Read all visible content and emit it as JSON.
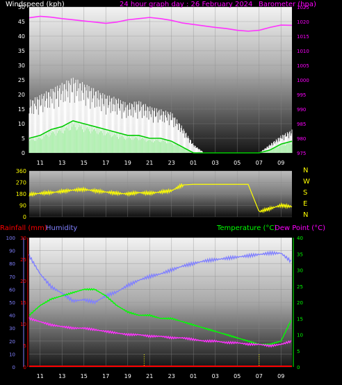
{
  "header": {
    "windspeed_label": "Windspeed (kph)",
    "title": "24 hour graph day : 26 February 2024",
    "barometer_label": "Barometer (hpa)"
  },
  "bottom_header": {
    "rainfall_label": "Rainfall (mm)",
    "humidity_label": "Humidity",
    "temperature_label": "Temperature (°C)",
    "dewpoint_label": "Dew Point (°C)"
  },
  "x_ticks": [
    "11",
    "13",
    "15",
    "17",
    "19",
    "21",
    "23",
    "01",
    "03",
    "05",
    "07",
    "09"
  ],
  "colors": {
    "windspeed_gust": "#ffffff",
    "windspeed_avg": "#b0f0b0",
    "windspeed_avg_line": "#00cc00",
    "barometer": "#ff33ff",
    "direction": "#ffff00",
    "rainfall": "#ff0000",
    "humidity": "#8080ff",
    "temperature": "#00ff00",
    "dewpoint": "#ff33ff",
    "dew_point_label": "#ff00ff"
  },
  "chart_data": [
    {
      "type": "area",
      "title": "24 hour graph day : 26 February 2024",
      "ylabel_left": "Windspeed (kph)",
      "ylabel_right": "Barometer (hpa)",
      "ylim_left": [
        0,
        50
      ],
      "ylim_right": [
        975,
        1025
      ],
      "left_ticks": [
        0,
        5,
        10,
        15,
        20,
        25,
        30,
        35,
        40,
        45,
        50
      ],
      "right_ticks": [
        975,
        980,
        985,
        990,
        995,
        1000,
        1005,
        1010,
        1015,
        1020,
        1025
      ],
      "x_hours": [
        10,
        11,
        12,
        13,
        14,
        15,
        16,
        17,
        18,
        19,
        20,
        21,
        22,
        23,
        24,
        25,
        26,
        27,
        28,
        29,
        30,
        31,
        32,
        33,
        34
      ],
      "series": [
        {
          "name": "Windspeed gust",
          "values": [
            18,
            20,
            22,
            24,
            26,
            24,
            22,
            20,
            19,
            17,
            18,
            16,
            15,
            14,
            9,
            3,
            0,
            0,
            0,
            0,
            0,
            0,
            3,
            6,
            8
          ]
        },
        {
          "name": "Windspeed average",
          "values": [
            5,
            6,
            8,
            9,
            11,
            10,
            9,
            8,
            7,
            6,
            6,
            5,
            5,
            4,
            2,
            0,
            0,
            0,
            0,
            0,
            0,
            0,
            1,
            3,
            4
          ]
        },
        {
          "name": "Barometer",
          "values": [
            1021.3,
            1021.8,
            1021.5,
            1021,
            1020.6,
            1020.2,
            1019.8,
            1019.4,
            1019.8,
            1020.6,
            1021,
            1021.4,
            1021,
            1020.4,
            1019.5,
            1019,
            1018.5,
            1018,
            1017.6,
            1017,
            1016.7,
            1017,
            1018,
            1018.8,
            1018.7
          ]
        }
      ]
    },
    {
      "type": "line",
      "ylabel_right": "N W S E N",
      "ylim": [
        0,
        360
      ],
      "left_ticks": [
        0,
        90,
        180,
        270,
        360
      ],
      "direction_labels": [
        "N",
        "W",
        "S",
        "E",
        "N"
      ],
      "x_hours": [
        10,
        11,
        12,
        13,
        14,
        15,
        16,
        17,
        18,
        19,
        20,
        21,
        22,
        23,
        24,
        25,
        26,
        27,
        28,
        29,
        30,
        31,
        32,
        33,
        34
      ],
      "series": [
        {
          "name": "Wind direction",
          "values": [
            175,
            185,
            190,
            200,
            210,
            215,
            205,
            195,
            185,
            180,
            190,
            185,
            195,
            205,
            250,
            255,
            255,
            255,
            255,
            255,
            255,
            40,
            65,
            90,
            80
          ]
        }
      ]
    },
    {
      "type": "line",
      "xlabel": "",
      "left_ticks_humidity": [
        0,
        10,
        20,
        30,
        40,
        50,
        60,
        70,
        80,
        90,
        100
      ],
      "left_ticks_rain": [
        0,
        5,
        10,
        15,
        20,
        25,
        30
      ],
      "right_ticks_temp": [
        0,
        5,
        10,
        15,
        20,
        25,
        30,
        35,
        40
      ],
      "ylim_humidity": [
        0,
        100
      ],
      "ylim_rain": [
        0,
        30
      ],
      "ylim_temp": [
        0,
        40
      ],
      "x_hours": [
        10,
        11,
        12,
        13,
        14,
        15,
        16,
        17,
        18,
        19,
        20,
        21,
        22,
        23,
        24,
        25,
        26,
        27,
        28,
        29,
        30,
        31,
        32,
        33,
        34
      ],
      "series": [
        {
          "name": "Rainfall",
          "values": [
            0,
            0,
            0,
            0,
            0,
            0,
            0,
            0,
            0,
            0,
            0,
            0,
            0,
            0,
            0,
            0,
            0,
            0,
            0,
            0,
            0,
            0,
            0,
            0,
            0
          ]
        },
        {
          "name": "Humidity",
          "values": [
            86,
            72,
            62,
            57,
            51,
            52,
            50,
            55,
            58,
            63,
            67,
            70,
            72,
            75,
            78,
            80,
            82,
            83,
            84,
            85,
            86,
            87,
            88,
            88,
            81
          ]
        },
        {
          "name": "Temperature",
          "values": [
            16,
            19,
            21,
            22,
            23,
            24,
            24,
            22,
            19,
            17,
            16,
            16,
            15,
            15,
            14,
            13,
            12,
            11,
            10,
            9,
            8,
            7,
            7,
            8,
            15
          ]
        },
        {
          "name": "Dew Point",
          "values": [
            15,
            14,
            13,
            12.5,
            12,
            12,
            11.5,
            11,
            10.5,
            10,
            10,
            9.5,
            9.5,
            9,
            9,
            8.5,
            8,
            8,
            7.5,
            7.5,
            7,
            7,
            6.5,
            7,
            8
          ]
        }
      ]
    }
  ]
}
